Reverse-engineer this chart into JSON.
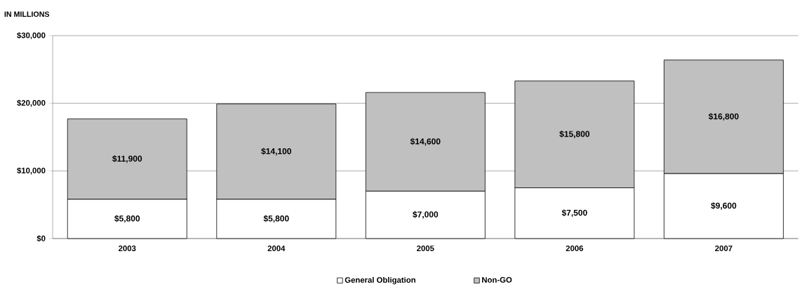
{
  "chart_data": {
    "type": "bar",
    "stacked": true,
    "ylabel": "IN MILLIONS",
    "categories": [
      "2003",
      "2004",
      "2005",
      "2006",
      "2007"
    ],
    "series": [
      {
        "name": "General Obligation",
        "color": "#ffffff",
        "values": [
          5800,
          5800,
          7000,
          7500,
          9600
        ],
        "value_labels": [
          "$5,800",
          "$5,800",
          "$7,000",
          "$7,500",
          "$9,600"
        ]
      },
      {
        "name": "Non-GO",
        "color": "#c0c0c0",
        "values": [
          11900,
          14100,
          14600,
          15800,
          16800
        ],
        "value_labels": [
          "$11,900",
          "$14,100",
          "$14,600",
          "$15,800",
          "$16,800"
        ]
      }
    ],
    "ylim": [
      0,
      30000
    ],
    "yticks": [
      {
        "value": 0,
        "label": "$0"
      },
      {
        "value": 10000,
        "label": "$10,000"
      },
      {
        "value": 20000,
        "label": "$20,000"
      },
      {
        "value": 30000,
        "label": "$30,000"
      }
    ],
    "grid": "y",
    "legend": "bottom"
  }
}
